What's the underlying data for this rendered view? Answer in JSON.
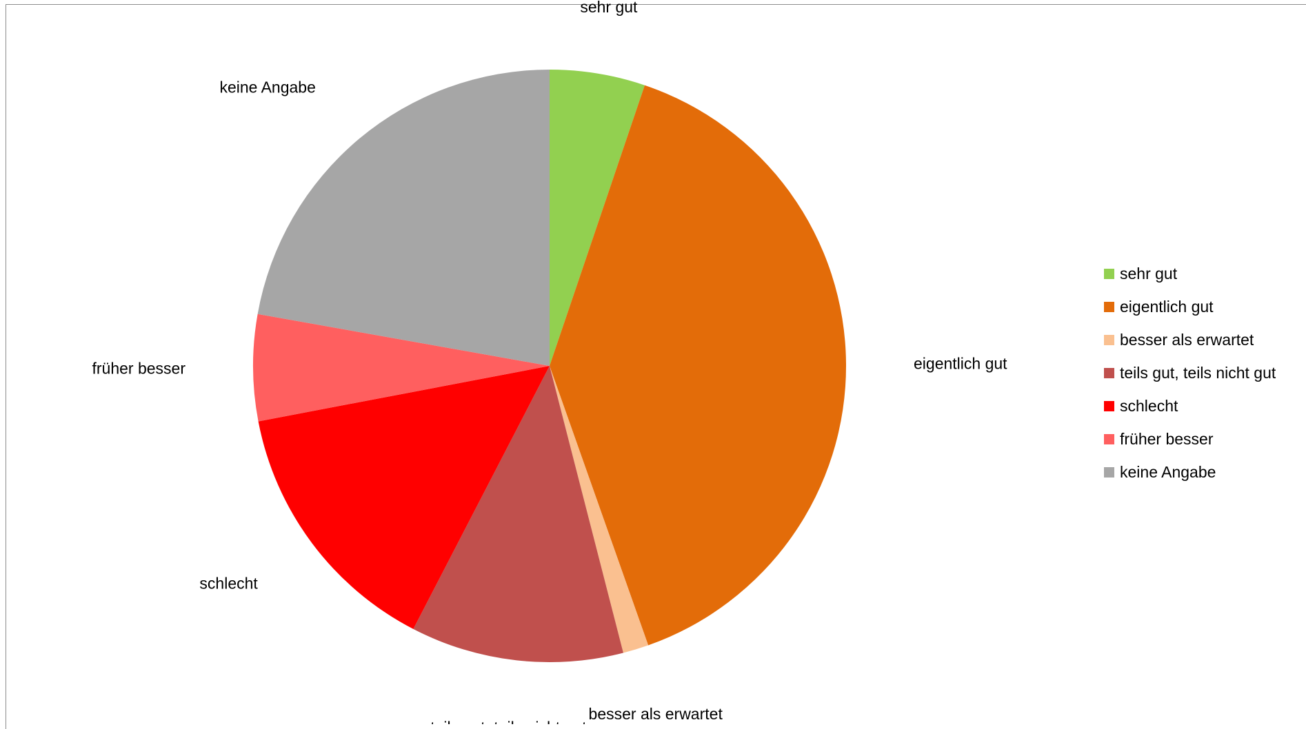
{
  "chart_data": {
    "type": "pie",
    "title": "",
    "start_angle_deg": 0,
    "direction": "clockwise",
    "legend_position": "right",
    "labels_outside": true,
    "slices": [
      {
        "label": "sehr gut",
        "value": 5.2,
        "color": "#92d050"
      },
      {
        "label": "eigentlich gut",
        "value": 39.4,
        "color": "#e36c09"
      },
      {
        "label": "besser als erwartet",
        "value": 1.4,
        "color": "#fac090"
      },
      {
        "label": "teils gut, teils nicht gut",
        "value": 11.6,
        "color": "#c0504d"
      },
      {
        "label": "schlecht",
        "value": 14.4,
        "color": "#ff0000"
      },
      {
        "label": "früher besser",
        "value": 5.8,
        "color": "#ff5f5f"
      },
      {
        "label": "keine Angabe",
        "value": 22.2,
        "color": "#a6a6a6"
      }
    ]
  }
}
